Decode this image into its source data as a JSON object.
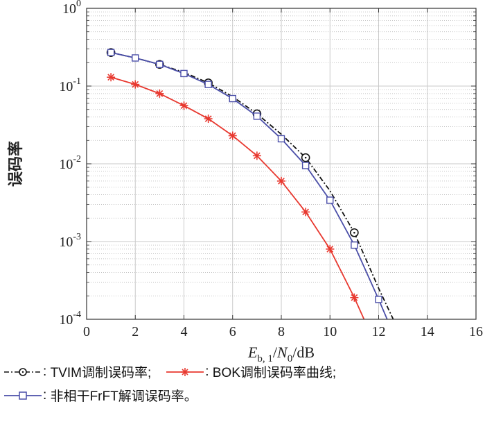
{
  "chart_data": {
    "type": "line",
    "xlabel": "E_{b,1}/N_0/dB",
    "xlabel_parts": {
      "main": "E",
      "sub": "b, 1",
      "slash": "/",
      "main2": "N",
      "sub2": "0",
      "unit": "/dB"
    },
    "ylabel": "误码率",
    "xlim": [
      0,
      16
    ],
    "ylim": [
      0.0001,
      1
    ],
    "yscale": "log",
    "grid": true,
    "xticks": [
      "0",
      "2",
      "4",
      "6",
      "8",
      "10",
      "12",
      "14",
      "16"
    ],
    "yticks": [
      {
        "base": "10",
        "exp": "0"
      },
      {
        "base": "10",
        "exp": "-1"
      },
      {
        "base": "10",
        "exp": "-2"
      },
      {
        "base": "10",
        "exp": "-3"
      },
      {
        "base": "10",
        "exp": "-4"
      }
    ],
    "legend_placement": "bottom",
    "series": [
      {
        "name": "TVIM调制误码率;",
        "color": "#111111",
        "line": "dashdot",
        "marker": "circle",
        "x": [
          1,
          2,
          3,
          4,
          5,
          6,
          7,
          8,
          9,
          10,
          11,
          12,
          12.6
        ],
        "y": [
          0.27,
          0.23,
          0.19,
          0.15,
          0.11,
          0.073,
          0.044,
          0.024,
          0.012,
          0.0045,
          0.0013,
          0.00025,
          0.0001
        ],
        "marker_x": [
          1,
          3,
          5,
          7,
          9,
          11
        ]
      },
      {
        "name": "BOK调制误码率曲线;",
        "color": "#e8382f",
        "line": "solid",
        "marker": "star",
        "x": [
          1,
          2,
          3,
          4,
          5,
          6,
          7,
          8,
          9,
          10,
          11,
          11.4
        ],
        "y": [
          0.13,
          0.105,
          0.08,
          0.056,
          0.038,
          0.023,
          0.0127,
          0.006,
          0.0024,
          0.0008,
          0.00019,
          0.0001
        ],
        "marker_x": [
          1,
          2,
          3,
          4,
          5,
          6,
          7,
          8,
          9,
          10,
          11
        ]
      },
      {
        "name": "非相干FrFT解调误码率。",
        "color": "#4a4ea8",
        "line": "solid",
        "marker": "square",
        "x": [
          1,
          2,
          3,
          4,
          5,
          6,
          7,
          8,
          9,
          10,
          11,
          12,
          12.35
        ],
        "y": [
          0.27,
          0.23,
          0.19,
          0.145,
          0.105,
          0.069,
          0.041,
          0.021,
          0.0095,
          0.0034,
          0.0009,
          0.00018,
          0.0001
        ],
        "marker_x": [
          1,
          2,
          3,
          4,
          5,
          6,
          7,
          8,
          9,
          10,
          11,
          12
        ]
      }
    ]
  },
  "legend": {
    "entries": [
      {
        "separator": ":",
        "label": "TVIM调制误码率;"
      },
      {
        "separator": ":",
        "label": "BOK调制误码率曲线;"
      },
      {
        "separator": ":",
        "label": "非相干FrFT解调误码率。"
      }
    ]
  }
}
